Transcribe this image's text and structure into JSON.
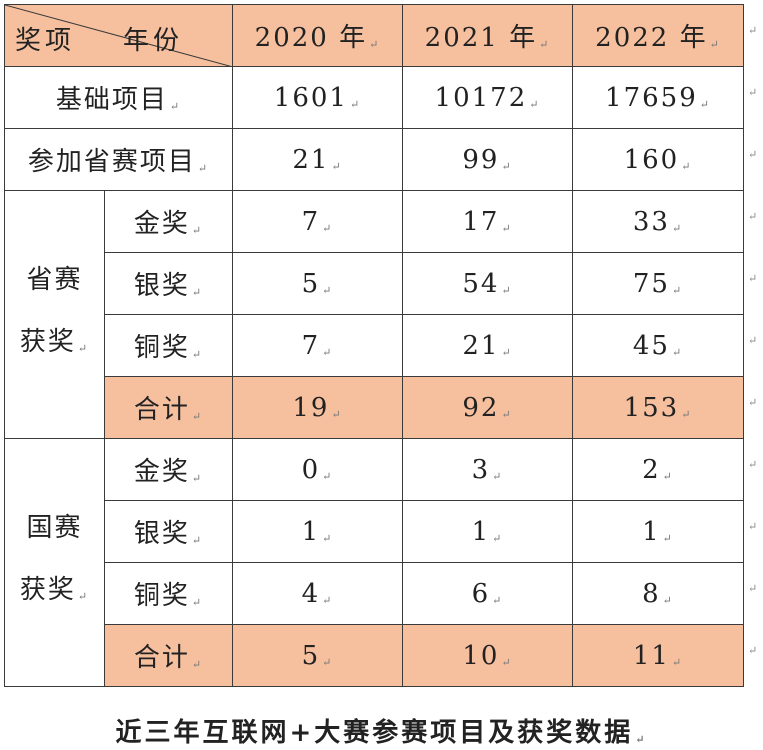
{
  "header": {
    "corner_left": "奖项",
    "corner_right": "年份",
    "years": [
      "2020 年",
      "2021 年",
      "2022 年"
    ]
  },
  "rows": {
    "basic": {
      "label": "基础项目",
      "values": [
        "1601",
        "10172",
        "17659"
      ]
    },
    "provincial_entries": {
      "label": "参加省赛项目",
      "values": [
        "21",
        "99",
        "160"
      ]
    }
  },
  "provincial_awards": {
    "group_label_line1": "省赛",
    "group_label_line2": "获奖",
    "gold": {
      "label": "金奖",
      "values": [
        "7",
        "17",
        "33"
      ]
    },
    "silver": {
      "label": "银奖",
      "values": [
        "5",
        "54",
        "75"
      ]
    },
    "bronze": {
      "label": "铜奖",
      "values": [
        "7",
        "21",
        "45"
      ]
    },
    "total": {
      "label": "合计",
      "values": [
        "19",
        "92",
        "153"
      ]
    }
  },
  "national_awards": {
    "group_label_line1": "国赛",
    "group_label_line2": "获奖",
    "gold": {
      "label": "金奖",
      "values": [
        "0",
        "3",
        "2"
      ]
    },
    "silver": {
      "label": "银奖",
      "values": [
        "1",
        "1",
        "1"
      ]
    },
    "bronze": {
      "label": "铜奖",
      "values": [
        "4",
        "6",
        "8"
      ]
    },
    "total": {
      "label": "合计",
      "values": [
        "5",
        "10",
        "11"
      ]
    }
  },
  "caption": "近三年互联网+大赛参赛项目及获奖数据",
  "colors": {
    "header_fill": "#f6c09f",
    "total_fill": "#f6c09f",
    "border": "#3a3a3a"
  }
}
